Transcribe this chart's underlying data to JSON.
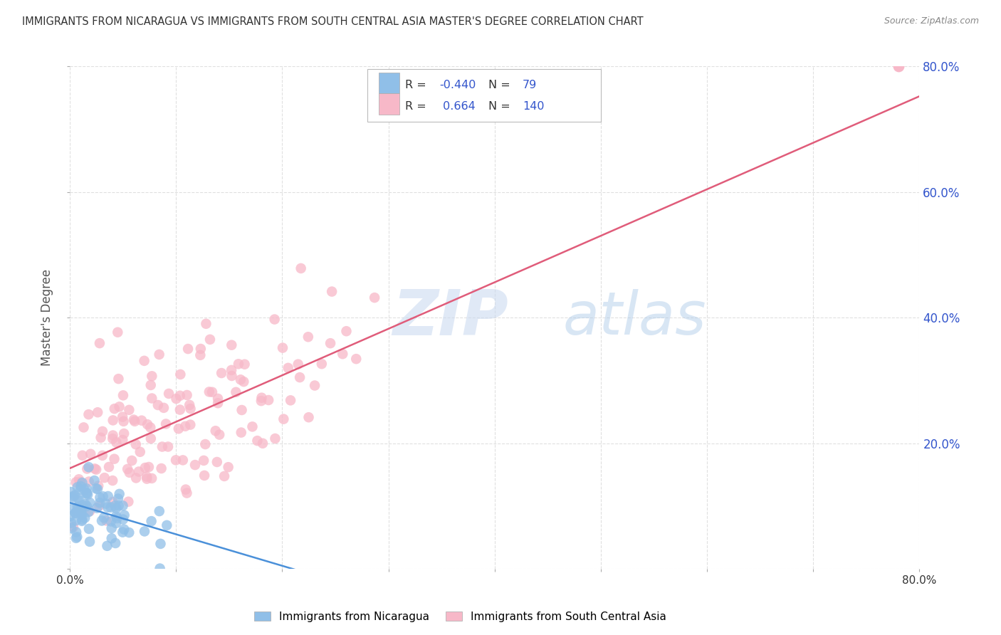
{
  "title": "IMMIGRANTS FROM NICARAGUA VS IMMIGRANTS FROM SOUTH CENTRAL ASIA MASTER'S DEGREE CORRELATION CHART",
  "source": "Source: ZipAtlas.com",
  "ylabel": "Master's Degree",
  "xlim": [
    0.0,
    0.8
  ],
  "ylim": [
    0.0,
    0.8
  ],
  "yticks_right": [
    0.2,
    0.4,
    0.6,
    0.8
  ],
  "ytick_right_labels": [
    "20.0%",
    "40.0%",
    "60.0%",
    "80.0%"
  ],
  "nicaragua_R": -0.44,
  "nicaragua_N": 79,
  "sca_R": 0.664,
  "sca_N": 140,
  "nicaragua_color": "#90bfe8",
  "sca_color": "#f7b8c8",
  "nicaragua_line_color": "#4a90d9",
  "sca_line_color": "#e05c7a",
  "legend_R_color": "#3355cc",
  "background_color": "#ffffff",
  "grid_color": "#cccccc",
  "watermark_zip_color": "#c8d8ef",
  "watermark_atlas_color": "#aac8e8"
}
